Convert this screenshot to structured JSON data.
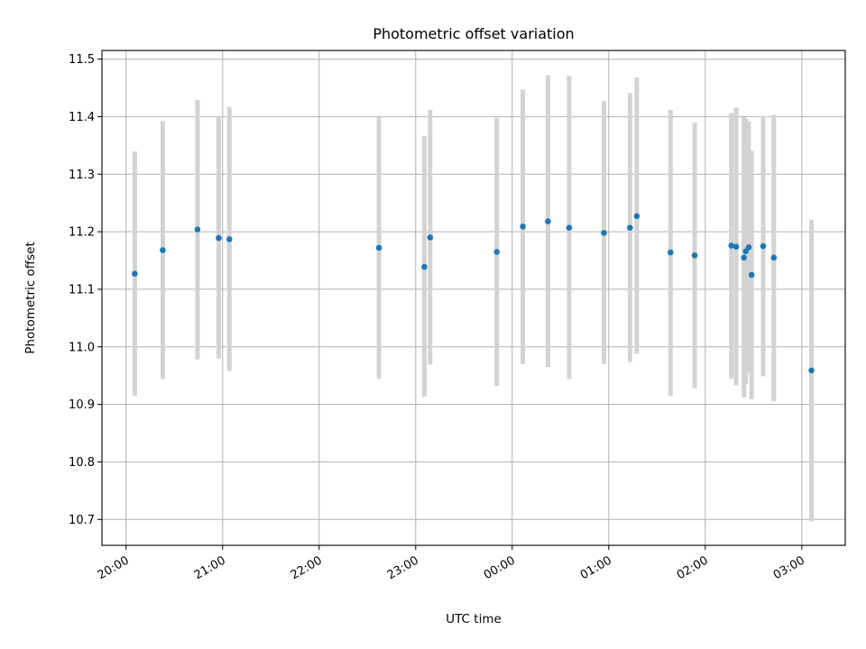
{
  "chart_data": {
    "type": "scatter",
    "title": "Photometric offset variation",
    "xlabel": "UTC time",
    "ylabel": "Photometric offset",
    "x_unit": "hours since 20:00 UTC (time of day)",
    "xlim": [
      -0.25,
      7.45
    ],
    "ylim": [
      10.655,
      11.515
    ],
    "x_ticks": [
      {
        "value": 0,
        "label": "20:00"
      },
      {
        "value": 1,
        "label": "21:00"
      },
      {
        "value": 2,
        "label": "22:00"
      },
      {
        "value": 3,
        "label": "23:00"
      },
      {
        "value": 4,
        "label": "00:00"
      },
      {
        "value": 5,
        "label": "01:00"
      },
      {
        "value": 6,
        "label": "02:00"
      },
      {
        "value": 7,
        "label": "03:00"
      }
    ],
    "y_ticks": [
      {
        "value": 10.7,
        "label": "10.7"
      },
      {
        "value": 10.8,
        "label": "10.8"
      },
      {
        "value": 10.9,
        "label": "10.9"
      },
      {
        "value": 11.0,
        "label": "11.0"
      },
      {
        "value": 11.1,
        "label": "11.1"
      },
      {
        "value": 11.2,
        "label": "11.2"
      },
      {
        "value": 11.3,
        "label": "11.3"
      },
      {
        "value": 11.4,
        "label": "11.4"
      },
      {
        "value": 11.5,
        "label": "11.5"
      }
    ],
    "grid": true,
    "colors": {
      "point": "#1f77b4",
      "errorbar": "#d3d3d3",
      "grid": "#b0b0b0"
    },
    "points": [
      {
        "x": 0.09,
        "y": 11.127,
        "lo": 10.915,
        "hi": 11.34
      },
      {
        "x": 0.38,
        "y": 11.168,
        "lo": 10.944,
        "hi": 11.392
      },
      {
        "x": 0.74,
        "y": 11.204,
        "lo": 10.978,
        "hi": 11.429
      },
      {
        "x": 0.96,
        "y": 11.189,
        "lo": 10.979,
        "hi": 11.4
      },
      {
        "x": 1.07,
        "y": 11.187,
        "lo": 10.958,
        "hi": 11.417
      },
      {
        "x": 2.62,
        "y": 11.172,
        "lo": 10.945,
        "hi": 11.4
      },
      {
        "x": 3.09,
        "y": 11.139,
        "lo": 10.913,
        "hi": 11.366
      },
      {
        "x": 3.15,
        "y": 11.19,
        "lo": 10.969,
        "hi": 11.412
      },
      {
        "x": 3.84,
        "y": 11.165,
        "lo": 10.932,
        "hi": 11.398
      },
      {
        "x": 4.11,
        "y": 11.209,
        "lo": 10.97,
        "hi": 11.447
      },
      {
        "x": 4.37,
        "y": 11.218,
        "lo": 10.965,
        "hi": 11.472
      },
      {
        "x": 4.59,
        "y": 11.207,
        "lo": 10.944,
        "hi": 11.471
      },
      {
        "x": 4.95,
        "y": 11.198,
        "lo": 10.97,
        "hi": 11.427
      },
      {
        "x": 5.22,
        "y": 11.207,
        "lo": 10.974,
        "hi": 11.441
      },
      {
        "x": 5.29,
        "y": 11.227,
        "lo": 10.988,
        "hi": 11.468
      },
      {
        "x": 5.64,
        "y": 11.164,
        "lo": 10.915,
        "hi": 11.412
      },
      {
        "x": 5.89,
        "y": 11.159,
        "lo": 10.928,
        "hi": 11.39
      },
      {
        "x": 6.27,
        "y": 11.176,
        "lo": 10.945,
        "hi": 11.406
      },
      {
        "x": 6.32,
        "y": 11.174,
        "lo": 10.933,
        "hi": 11.416
      },
      {
        "x": 6.4,
        "y": 11.155,
        "lo": 10.912,
        "hi": 11.399
      },
      {
        "x": 6.42,
        "y": 11.166,
        "lo": 10.936,
        "hi": 11.396
      },
      {
        "x": 6.45,
        "y": 11.173,
        "lo": 10.955,
        "hi": 11.392
      },
      {
        "x": 6.48,
        "y": 11.125,
        "lo": 10.909,
        "hi": 11.341
      },
      {
        "x": 6.6,
        "y": 11.175,
        "lo": 10.949,
        "hi": 11.401
      },
      {
        "x": 6.71,
        "y": 11.155,
        "lo": 10.905,
        "hi": 11.403
      },
      {
        "x": 7.1,
        "y": 10.959,
        "lo": 10.697,
        "hi": 11.221
      }
    ]
  }
}
